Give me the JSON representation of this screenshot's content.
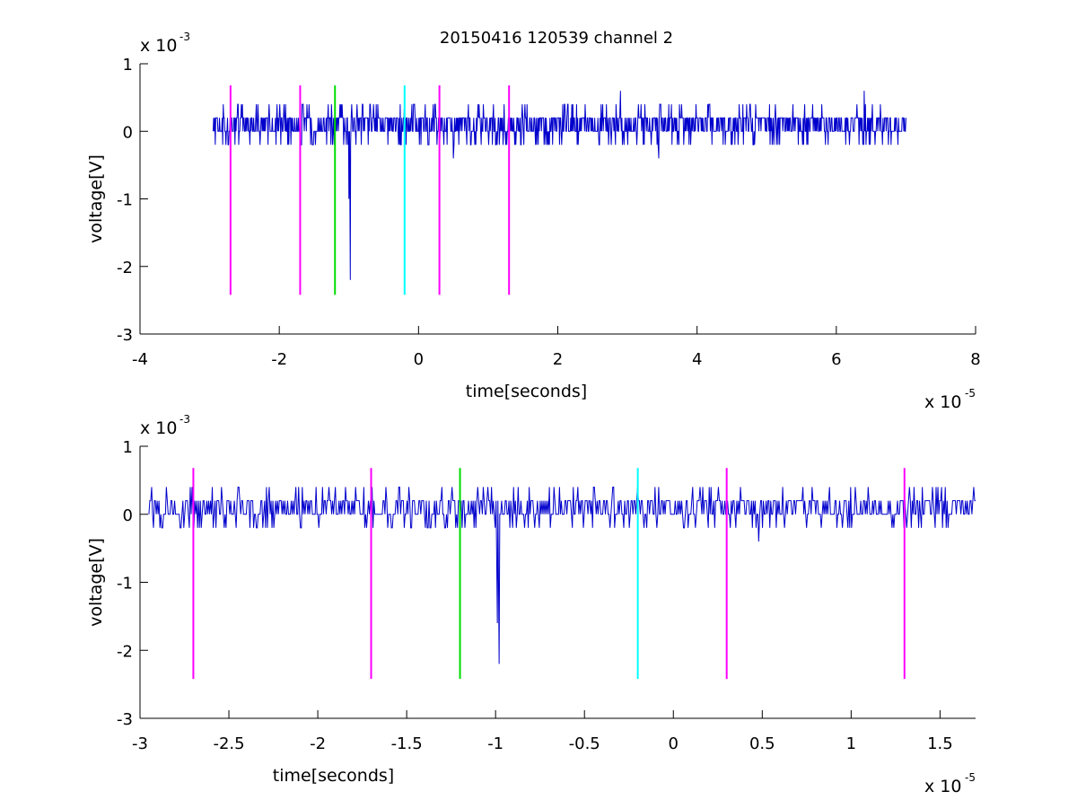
{
  "figure": {
    "title": "20150416 120539 channel 2",
    "background": "#ffffff"
  },
  "chart_data": [
    {
      "type": "line",
      "panel": "top",
      "title": "20150416 120539 channel 2",
      "xlabel": "time[seconds]",
      "ylabel": "voltage[V]",
      "x_scale_label": {
        "base": "x 10",
        "exponent": "-5"
      },
      "y_scale_label": {
        "base": "x 10",
        "exponent": "-3"
      },
      "xlim": [
        -4,
        8
      ],
      "ylim": [
        -3,
        1
      ],
      "xticks": [
        -4,
        -2,
        0,
        2,
        4,
        6,
        8
      ],
      "xtick_labels": [
        "-4",
        "-2",
        "0",
        "2",
        "4",
        "6",
        "8"
      ],
      "yticks": [
        -3,
        -2,
        -1,
        0,
        1
      ],
      "ytick_labels": [
        "-3",
        "-2",
        "-1",
        "0",
        "1"
      ],
      "grid": false,
      "series": [
        {
          "color": "#0000cc",
          "x_range": [
            -2.95,
            7.0
          ],
          "baseline": 0.1,
          "noise_levels": [
            -0.2,
            0,
            0.2,
            0.4
          ],
          "spikes": [
            {
              "x": -0.98,
              "y": -2.2
            },
            {
              "x": -1.0,
              "y": -1.0
            },
            {
              "x": 0.5,
              "y": -0.4
            },
            {
              "x": 2.9,
              "y": 0.6
            },
            {
              "x": 3.45,
              "y": -0.4
            },
            {
              "x": 6.4,
              "y": 0.6
            }
          ]
        }
      ],
      "markers": [
        {
          "x": -2.7,
          "y_range": [
            -2.42,
            0.68
          ],
          "color": "#ff00ff"
        },
        {
          "x": -1.7,
          "y_range": [
            -2.42,
            0.68
          ],
          "color": "#ff00ff"
        },
        {
          "x": -1.2,
          "y_range": [
            -2.42,
            0.68
          ],
          "color": "#00dd00"
        },
        {
          "x": -0.2,
          "y_range": [
            -2.42,
            0.68
          ],
          "color": "#00ffff"
        },
        {
          "x": 0.3,
          "y_range": [
            -2.42,
            0.68
          ],
          "color": "#ff00ff"
        },
        {
          "x": 1.3,
          "y_range": [
            -2.42,
            0.68
          ],
          "color": "#ff00ff"
        }
      ]
    },
    {
      "type": "line",
      "panel": "bottom",
      "title": "",
      "xlabel": "time[seconds]",
      "ylabel": "voltage[V]",
      "x_scale_label": {
        "base": "x 10",
        "exponent": "-5"
      },
      "y_scale_label": {
        "base": "x 10",
        "exponent": "-3"
      },
      "xlim": [
        -3.0,
        1.7
      ],
      "ylim": [
        -3,
        1
      ],
      "xticks": [
        -3,
        -2.5,
        -2,
        -1.5,
        -1,
        -0.5,
        0,
        0.5,
        1,
        1.5
      ],
      "xtick_labels": [
        "-3",
        "-2.5",
        "-2",
        "-1.5",
        "-1",
        "-0.5",
        "0",
        "0.5",
        "1",
        "1.5"
      ],
      "yticks": [
        -3,
        -2,
        -1,
        0,
        1
      ],
      "ytick_labels": [
        "-3",
        "-2",
        "-1",
        "0",
        "1"
      ],
      "grid": false,
      "series": [
        {
          "color": "#0000cc",
          "x_range": [
            -2.95,
            1.7
          ],
          "baseline": 0.1,
          "noise_levels": [
            -0.2,
            0,
            0.2,
            0.4
          ],
          "spikes": [
            {
              "x": -0.98,
              "y": -2.2
            },
            {
              "x": -0.99,
              "y": -1.6
            },
            {
              "x": 0.48,
              "y": -0.4
            }
          ]
        }
      ],
      "markers": [
        {
          "x": -2.7,
          "y_range": [
            -2.42,
            0.68
          ],
          "color": "#ff00ff"
        },
        {
          "x": -1.7,
          "y_range": [
            -2.42,
            0.68
          ],
          "color": "#ff00ff"
        },
        {
          "x": -1.2,
          "y_range": [
            -2.42,
            0.68
          ],
          "color": "#00dd00"
        },
        {
          "x": -0.2,
          "y_range": [
            -2.42,
            0.68
          ],
          "color": "#00ffff"
        },
        {
          "x": 0.3,
          "y_range": [
            -2.42,
            0.68
          ],
          "color": "#ff00ff"
        },
        {
          "x": 1.3,
          "y_range": [
            -2.42,
            0.68
          ],
          "color": "#ff00ff"
        }
      ]
    }
  ]
}
